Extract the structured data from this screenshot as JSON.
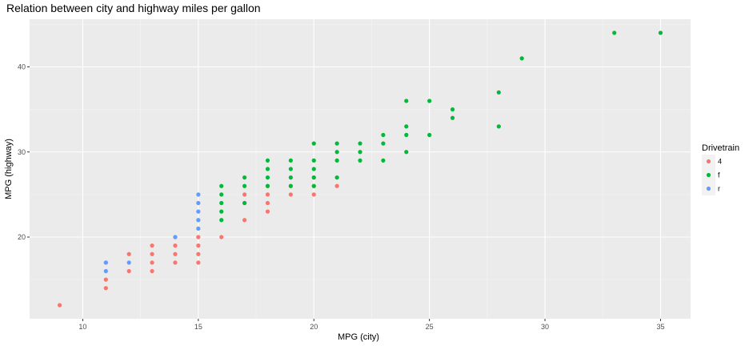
{
  "chart_data": {
    "type": "scatter",
    "title": "Relation between city and highway miles per gallon",
    "xlabel": "MPG (city)",
    "ylabel": "MPG (highway)",
    "xlim": [
      7.7,
      36.3
    ],
    "ylim": [
      10.4,
      45.6
    ],
    "xticks": [
      10,
      15,
      20,
      25,
      30,
      35
    ],
    "yticks": [
      20,
      30,
      40
    ],
    "grid": true,
    "legend": {
      "title": "Drivetrain",
      "position": "right",
      "entries": [
        {
          "label": "4",
          "color": "#F8766D"
        },
        {
          "label": "f",
          "color": "#00BA38"
        },
        {
          "label": "r",
          "color": "#619CFF"
        }
      ]
    },
    "series": [
      {
        "name": "4",
        "color": "#F8766D",
        "points": [
          [
            9,
            12
          ],
          [
            11,
            14
          ],
          [
            11,
            15
          ],
          [
            11,
            17
          ],
          [
            12,
            16
          ],
          [
            12,
            18
          ],
          [
            13,
            16
          ],
          [
            13,
            17
          ],
          [
            13,
            18
          ],
          [
            13,
            19
          ],
          [
            14,
            17
          ],
          [
            14,
            18
          ],
          [
            14,
            19
          ],
          [
            14,
            20
          ],
          [
            15,
            17
          ],
          [
            15,
            18
          ],
          [
            15,
            19
          ],
          [
            15,
            20
          ],
          [
            16,
            20
          ],
          [
            17,
            22
          ],
          [
            17,
            24
          ],
          [
            17,
            25
          ],
          [
            18,
            23
          ],
          [
            18,
            24
          ],
          [
            18,
            25
          ],
          [
            18,
            26
          ],
          [
            19,
            25
          ],
          [
            19,
            26
          ],
          [
            20,
            25
          ],
          [
            20,
            26
          ],
          [
            20,
            27
          ],
          [
            21,
            26
          ]
        ]
      },
      {
        "name": "f",
        "color": "#00BA38",
        "points": [
          [
            16,
            22
          ],
          [
            16,
            23
          ],
          [
            16,
            24
          ],
          [
            16,
            25
          ],
          [
            16,
            26
          ],
          [
            17,
            24
          ],
          [
            17,
            26
          ],
          [
            17,
            27
          ],
          [
            18,
            26
          ],
          [
            18,
            27
          ],
          [
            18,
            28
          ],
          [
            18,
            29
          ],
          [
            19,
            26
          ],
          [
            19,
            27
          ],
          [
            19,
            28
          ],
          [
            19,
            29
          ],
          [
            20,
            26
          ],
          [
            20,
            27
          ],
          [
            20,
            28
          ],
          [
            20,
            29
          ],
          [
            20,
            31
          ],
          [
            21,
            27
          ],
          [
            21,
            29
          ],
          [
            21,
            30
          ],
          [
            21,
            31
          ],
          [
            22,
            29
          ],
          [
            22,
            30
          ],
          [
            22,
            31
          ],
          [
            23,
            29
          ],
          [
            23,
            31
          ],
          [
            23,
            32
          ],
          [
            24,
            30
          ],
          [
            24,
            32
          ],
          [
            24,
            33
          ],
          [
            24,
            36
          ],
          [
            25,
            32
          ],
          [
            25,
            36
          ],
          [
            26,
            34
          ],
          [
            26,
            35
          ],
          [
            28,
            33
          ],
          [
            28,
            37
          ],
          [
            29,
            41
          ],
          [
            33,
            44
          ],
          [
            35,
            44
          ]
        ]
      },
      {
        "name": "r",
        "color": "#619CFF",
        "points": [
          [
            11,
            16
          ],
          [
            11,
            17
          ],
          [
            12,
            17
          ],
          [
            14,
            20
          ],
          [
            15,
            21
          ],
          [
            15,
            22
          ],
          [
            15,
            23
          ],
          [
            15,
            24
          ],
          [
            15,
            25
          ]
        ]
      }
    ]
  }
}
